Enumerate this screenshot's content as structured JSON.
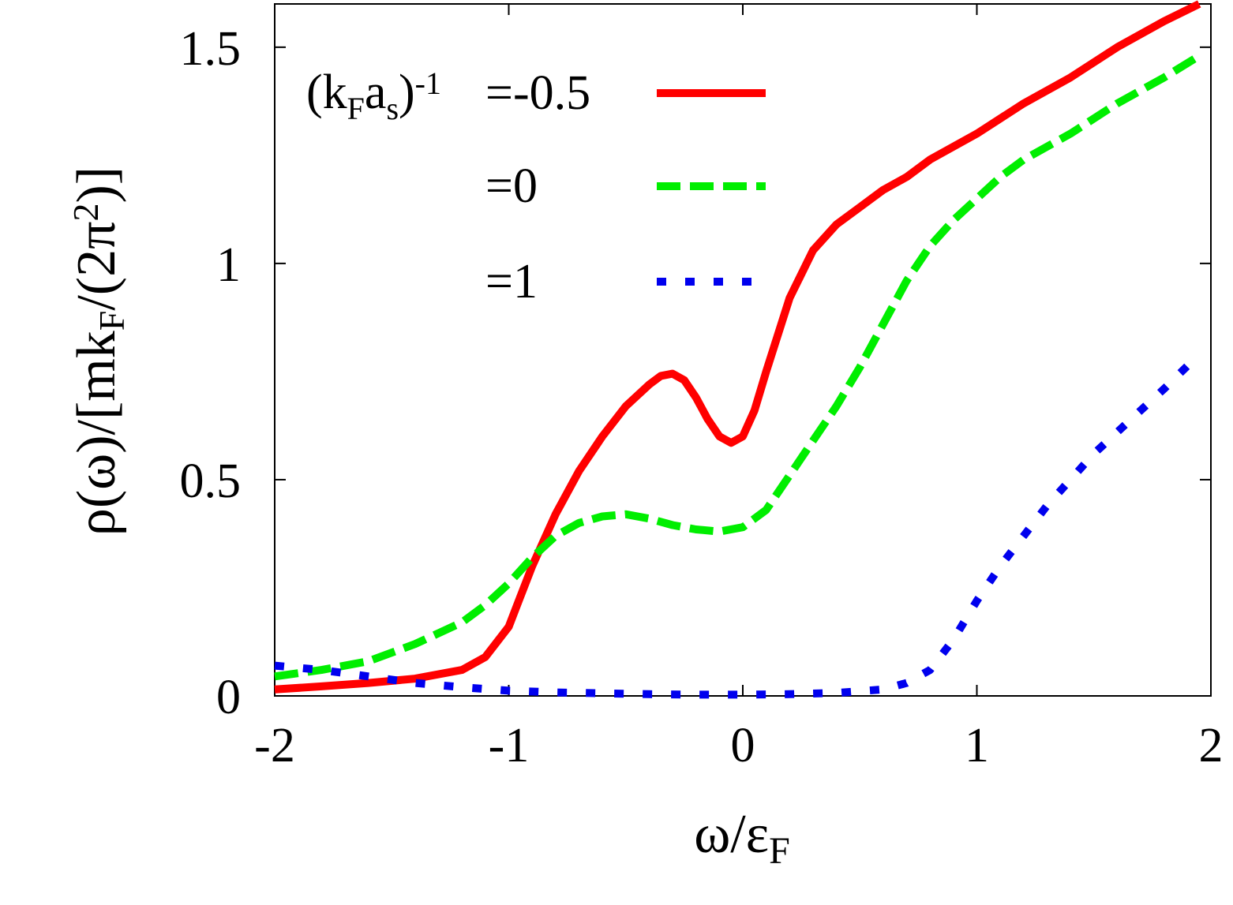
{
  "chart_data": {
    "type": "line",
    "title": "",
    "xlabel": {
      "main": "ω/ε",
      "sub": "F"
    },
    "ylabel": {
      "p1": "ρ(ω)/[mk",
      "sub": "F",
      "p2": "/(2π",
      "sup": "2",
      "p3": ")]"
    },
    "xlim": [
      -2,
      2
    ],
    "ylim": [
      0,
      1.6
    ],
    "xticks": [
      {
        "value": -2,
        "label": "-2"
      },
      {
        "value": -1,
        "label": "-1"
      },
      {
        "value": 0,
        "label": "0"
      },
      {
        "value": 1,
        "label": "1"
      },
      {
        "value": 2,
        "label": "2"
      }
    ],
    "yticks": [
      {
        "value": 0,
        "label": "0"
      },
      {
        "value": 0.5,
        "label": "0.5"
      },
      {
        "value": 1,
        "label": "1"
      },
      {
        "value": 1.5,
        "label": "1.5"
      }
    ],
    "grid": false,
    "legend_position": "top-left",
    "legend_title": {
      "p1": "(k",
      "sub1": "F",
      "p2": "a",
      "sub2": "s",
      "p3": ")",
      "sup": "-1"
    },
    "series": [
      {
        "name": "=-0.5",
        "color": "#ff0000",
        "style": "solid",
        "x": [
          -2.0,
          -1.8,
          -1.6,
          -1.4,
          -1.2,
          -1.1,
          -1.0,
          -0.95,
          -0.9,
          -0.8,
          -0.7,
          -0.6,
          -0.5,
          -0.4,
          -0.35,
          -0.3,
          -0.25,
          -0.2,
          -0.15,
          -0.1,
          -0.05,
          0.0,
          0.05,
          0.1,
          0.2,
          0.3,
          0.4,
          0.5,
          0.6,
          0.7,
          0.8,
          1.0,
          1.2,
          1.4,
          1.6,
          1.8,
          1.95
        ],
        "y": [
          0.015,
          0.022,
          0.03,
          0.04,
          0.06,
          0.09,
          0.16,
          0.23,
          0.3,
          0.42,
          0.52,
          0.6,
          0.67,
          0.72,
          0.74,
          0.745,
          0.73,
          0.69,
          0.64,
          0.6,
          0.585,
          0.6,
          0.66,
          0.75,
          0.92,
          1.03,
          1.09,
          1.13,
          1.17,
          1.2,
          1.24,
          1.3,
          1.37,
          1.43,
          1.5,
          1.56,
          1.6
        ]
      },
      {
        "name": "=0",
        "color": "#00ee00",
        "style": "dashed",
        "x": [
          -2.0,
          -1.8,
          -1.6,
          -1.4,
          -1.2,
          -1.1,
          -1.0,
          -0.9,
          -0.8,
          -0.7,
          -0.6,
          -0.5,
          -0.4,
          -0.3,
          -0.2,
          -0.1,
          0.0,
          0.1,
          0.2,
          0.3,
          0.4,
          0.5,
          0.6,
          0.7,
          0.8,
          0.9,
          1.0,
          1.1,
          1.2,
          1.4,
          1.6,
          1.8,
          1.95
        ],
        "y": [
          0.045,
          0.06,
          0.08,
          0.12,
          0.17,
          0.21,
          0.26,
          0.32,
          0.37,
          0.4,
          0.415,
          0.42,
          0.41,
          0.395,
          0.385,
          0.38,
          0.39,
          0.43,
          0.51,
          0.59,
          0.67,
          0.76,
          0.86,
          0.96,
          1.04,
          1.1,
          1.15,
          1.2,
          1.24,
          1.3,
          1.37,
          1.43,
          1.48
        ]
      },
      {
        "name": "=1",
        "color": "#0000ee",
        "style": "dotted",
        "x": [
          -2.0,
          -1.8,
          -1.6,
          -1.4,
          -1.2,
          -1.0,
          -0.8,
          -0.6,
          -0.4,
          -0.2,
          0.0,
          0.2,
          0.4,
          0.6,
          0.7,
          0.8,
          0.9,
          1.0,
          1.1,
          1.2,
          1.3,
          1.4,
          1.5,
          1.6,
          1.7,
          1.8,
          1.95
        ],
        "y": [
          0.07,
          0.06,
          0.045,
          0.03,
          0.02,
          0.012,
          0.008,
          0.006,
          0.004,
          0.003,
          0.003,
          0.004,
          0.007,
          0.015,
          0.03,
          0.06,
          0.13,
          0.22,
          0.3,
          0.37,
          0.44,
          0.5,
          0.56,
          0.61,
          0.66,
          0.71,
          0.79
        ]
      }
    ]
  }
}
